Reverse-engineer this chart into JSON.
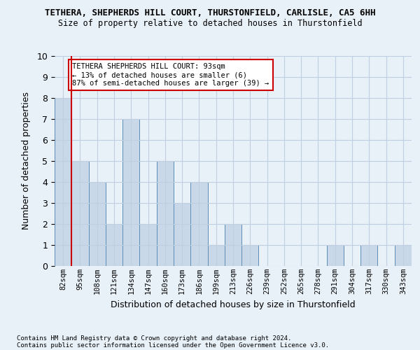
{
  "title": "TETHERA, SHEPHERDS HILL COURT, THURSTONFIELD, CARLISLE, CA5 6HH",
  "subtitle": "Size of property relative to detached houses in Thurstonfield",
  "xlabel": "Distribution of detached houses by size in Thurstonfield",
  "ylabel": "Number of detached properties",
  "footnote1": "Contains HM Land Registry data © Crown copyright and database right 2024.",
  "footnote2": "Contains public sector information licensed under the Open Government Licence v3.0.",
  "categories": [
    "82sqm",
    "95sqm",
    "108sqm",
    "121sqm",
    "134sqm",
    "147sqm",
    "160sqm",
    "173sqm",
    "186sqm",
    "199sqm",
    "213sqm",
    "226sqm",
    "239sqm",
    "252sqm",
    "265sqm",
    "278sqm",
    "291sqm",
    "304sqm",
    "317sqm",
    "330sqm",
    "343sqm"
  ],
  "values": [
    8,
    5,
    4,
    2,
    7,
    2,
    5,
    3,
    4,
    1,
    2,
    1,
    0,
    0,
    0,
    0,
    1,
    0,
    1,
    0,
    1
  ],
  "bar_color": "#c8d8e8",
  "bar_edge_color": "#5b8db8",
  "reference_line_color": "#cc0000",
  "annotation_text": "TETHERA SHEPHERDS HILL COURT: 93sqm\n← 13% of detached houses are smaller (6)\n87% of semi-detached houses are larger (39) →",
  "annotation_box_color": "#ffffff",
  "annotation_box_edge_color": "#cc0000",
  "ylim": [
    0,
    10
  ],
  "yticks": [
    0,
    1,
    2,
    3,
    4,
    5,
    6,
    7,
    8,
    9,
    10
  ],
  "grid_color": "#c0cfe0",
  "bg_color": "#e8f0f8"
}
